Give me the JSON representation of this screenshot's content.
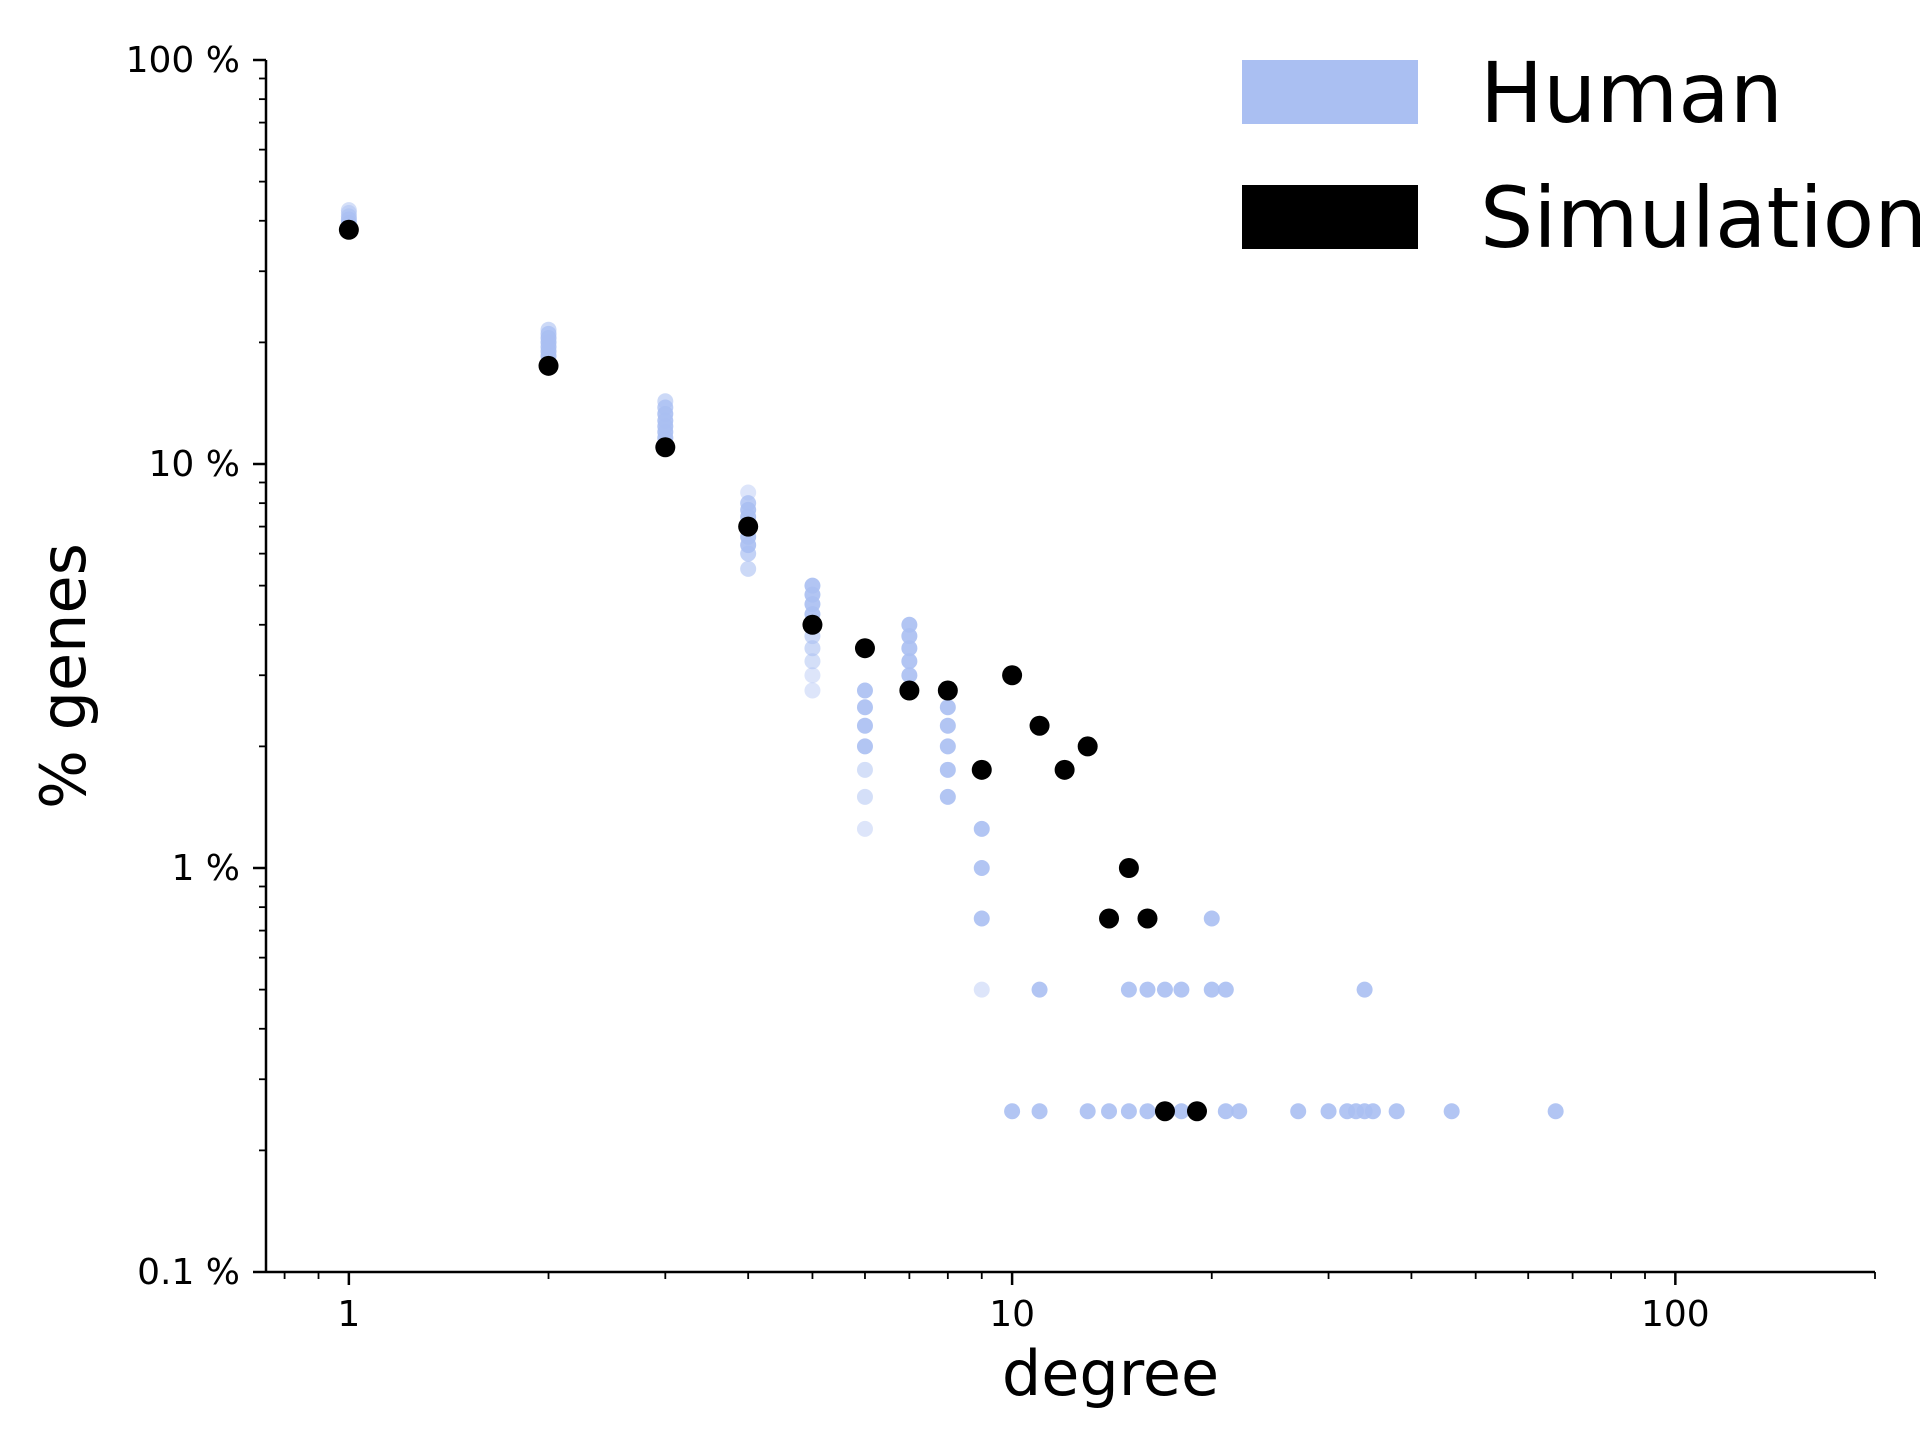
{
  "chart_data": {
    "type": "scatter",
    "title": "",
    "xlabel": "degree",
    "ylabel": "% genes",
    "xscale": "log",
    "yscale": "log",
    "xlim": [
      0.75,
      200
    ],
    "ylim": [
      0.1,
      100
    ],
    "x_ticks": [
      1,
      10,
      100
    ],
    "x_tick_labels": [
      "1",
      "10",
      "100"
    ],
    "y_ticks": [
      0.1,
      1,
      10,
      100
    ],
    "y_tick_labels": [
      "0.1 %",
      "1 %",
      "10 %",
      "100 %"
    ],
    "grid": false,
    "legend_position": "top-right",
    "series": [
      {
        "name": "Human",
        "color": "#aabff2",
        "marker": "circle",
        "points": [
          {
            "x": 1,
            "y": 42.5,
            "alpha": 0.5
          },
          {
            "x": 1,
            "y": 41.8,
            "alpha": 0.5
          },
          {
            "x": 1,
            "y": 41.0,
            "alpha": 0.6
          },
          {
            "x": 1,
            "y": 40.3,
            "alpha": 0.8
          },
          {
            "x": 1,
            "y": 39.5,
            "alpha": 0.9
          },
          {
            "x": 2,
            "y": 21.5,
            "alpha": 0.6
          },
          {
            "x": 2,
            "y": 21.0,
            "alpha": 0.8
          },
          {
            "x": 2,
            "y": 20.5,
            "alpha": 0.9
          },
          {
            "x": 2,
            "y": 20.0,
            "alpha": 0.9
          },
          {
            "x": 2,
            "y": 19.5,
            "alpha": 0.9
          },
          {
            "x": 2,
            "y": 19.0,
            "alpha": 0.9
          },
          {
            "x": 2,
            "y": 18.5,
            "alpha": 0.9
          },
          {
            "x": 3,
            "y": 14.3,
            "alpha": 0.6
          },
          {
            "x": 3,
            "y": 13.8,
            "alpha": 0.8
          },
          {
            "x": 3,
            "y": 13.3,
            "alpha": 0.9
          },
          {
            "x": 3,
            "y": 12.8,
            "alpha": 0.9
          },
          {
            "x": 3,
            "y": 12.4,
            "alpha": 0.9
          },
          {
            "x": 3,
            "y": 12.0,
            "alpha": 0.9
          },
          {
            "x": 3,
            "y": 11.6,
            "alpha": 0.9
          },
          {
            "x": 4,
            "y": 8.5,
            "alpha": 0.4
          },
          {
            "x": 4,
            "y": 8.0,
            "alpha": 0.8
          },
          {
            "x": 4,
            "y": 7.7,
            "alpha": 0.9
          },
          {
            "x": 4,
            "y": 7.4,
            "alpha": 0.9
          },
          {
            "x": 4,
            "y": 6.6,
            "alpha": 0.9
          },
          {
            "x": 4,
            "y": 6.3,
            "alpha": 0.9
          },
          {
            "x": 4,
            "y": 6.0,
            "alpha": 0.7
          },
          {
            "x": 4,
            "y": 5.5,
            "alpha": 0.6
          },
          {
            "x": 5,
            "y": 5.0,
            "alpha": 0.9
          },
          {
            "x": 5,
            "y": 4.75,
            "alpha": 0.9
          },
          {
            "x": 5,
            "y": 4.5,
            "alpha": 0.9
          },
          {
            "x": 5,
            "y": 4.25,
            "alpha": 0.9
          },
          {
            "x": 5,
            "y": 3.75,
            "alpha": 0.6
          },
          {
            "x": 5,
            "y": 3.5,
            "alpha": 0.6
          },
          {
            "x": 5,
            "y": 3.25,
            "alpha": 0.5
          },
          {
            "x": 5,
            "y": 3.0,
            "alpha": 0.4
          },
          {
            "x": 5,
            "y": 2.75,
            "alpha": 0.4
          },
          {
            "x": 6,
            "y": 2.75,
            "alpha": 0.9
          },
          {
            "x": 6,
            "y": 2.5,
            "alpha": 0.9
          },
          {
            "x": 6,
            "y": 2.25,
            "alpha": 0.9
          },
          {
            "x": 6,
            "y": 2.0,
            "alpha": 0.9
          },
          {
            "x": 6,
            "y": 1.75,
            "alpha": 0.5
          },
          {
            "x": 6,
            "y": 1.5,
            "alpha": 0.5
          },
          {
            "x": 6,
            "y": 1.25,
            "alpha": 0.4
          },
          {
            "x": 7,
            "y": 4.0,
            "alpha": 0.9
          },
          {
            "x": 7,
            "y": 3.75,
            "alpha": 0.9
          },
          {
            "x": 7,
            "y": 3.5,
            "alpha": 0.9
          },
          {
            "x": 7,
            "y": 3.25,
            "alpha": 0.9
          },
          {
            "x": 7,
            "y": 3.0,
            "alpha": 0.9
          },
          {
            "x": 8,
            "y": 2.5,
            "alpha": 0.9
          },
          {
            "x": 8,
            "y": 2.25,
            "alpha": 0.9
          },
          {
            "x": 8,
            "y": 2.0,
            "alpha": 0.9
          },
          {
            "x": 8,
            "y": 1.75,
            "alpha": 0.9
          },
          {
            "x": 8,
            "y": 1.5,
            "alpha": 0.9
          },
          {
            "x": 9,
            "y": 1.25,
            "alpha": 0.9
          },
          {
            "x": 9,
            "y": 1.0,
            "alpha": 0.9
          },
          {
            "x": 9,
            "y": 0.75,
            "alpha": 0.9
          },
          {
            "x": 9,
            "y": 0.5,
            "alpha": 0.4
          },
          {
            "x": 11,
            "y": 0.5,
            "alpha": 0.9
          },
          {
            "x": 15,
            "y": 0.5,
            "alpha": 0.9
          },
          {
            "x": 16,
            "y": 0.5,
            "alpha": 0.9
          },
          {
            "x": 17,
            "y": 0.5,
            "alpha": 0.9
          },
          {
            "x": 18,
            "y": 0.5,
            "alpha": 0.9
          },
          {
            "x": 20,
            "y": 0.5,
            "alpha": 0.9
          },
          {
            "x": 21,
            "y": 0.5,
            "alpha": 0.9
          },
          {
            "x": 34,
            "y": 0.5,
            "alpha": 0.9
          },
          {
            "x": 20,
            "y": 0.75,
            "alpha": 0.9
          },
          {
            "x": 10,
            "y": 0.25,
            "alpha": 0.9
          },
          {
            "x": 11,
            "y": 0.25,
            "alpha": 0.9
          },
          {
            "x": 13,
            "y": 0.25,
            "alpha": 0.9
          },
          {
            "x": 14,
            "y": 0.25,
            "alpha": 0.9
          },
          {
            "x": 15,
            "y": 0.25,
            "alpha": 0.9
          },
          {
            "x": 16,
            "y": 0.25,
            "alpha": 0.9
          },
          {
            "x": 18,
            "y": 0.25,
            "alpha": 0.9
          },
          {
            "x": 21,
            "y": 0.25,
            "alpha": 0.9
          },
          {
            "x": 22,
            "y": 0.25,
            "alpha": 0.9
          },
          {
            "x": 27,
            "y": 0.25,
            "alpha": 0.9
          },
          {
            "x": 30,
            "y": 0.25,
            "alpha": 0.9
          },
          {
            "x": 32,
            "y": 0.25,
            "alpha": 0.9
          },
          {
            "x": 33,
            "y": 0.25,
            "alpha": 0.9
          },
          {
            "x": 34,
            "y": 0.25,
            "alpha": 0.9
          },
          {
            "x": 35,
            "y": 0.25,
            "alpha": 0.9
          },
          {
            "x": 38,
            "y": 0.25,
            "alpha": 0.9
          },
          {
            "x": 46,
            "y": 0.25,
            "alpha": 0.9
          },
          {
            "x": 66,
            "y": 0.25,
            "alpha": 0.9
          }
        ]
      },
      {
        "name": "Simulation",
        "color": "#000000",
        "marker": "circle",
        "points": [
          {
            "x": 1,
            "y": 38.0
          },
          {
            "x": 2,
            "y": 17.5
          },
          {
            "x": 3,
            "y": 11.0
          },
          {
            "x": 4,
            "y": 7.0
          },
          {
            "x": 5,
            "y": 4.0
          },
          {
            "x": 6,
            "y": 3.5
          },
          {
            "x": 7,
            "y": 2.75
          },
          {
            "x": 8,
            "y": 2.75
          },
          {
            "x": 9,
            "y": 1.75
          },
          {
            "x": 10,
            "y": 3.0
          },
          {
            "x": 11,
            "y": 2.25
          },
          {
            "x": 12,
            "y": 1.75
          },
          {
            "x": 13,
            "y": 2.0
          },
          {
            "x": 14,
            "y": 0.75
          },
          {
            "x": 15,
            "y": 1.0
          },
          {
            "x": 16,
            "y": 0.75
          },
          {
            "x": 17,
            "y": 0.25
          },
          {
            "x": 19,
            "y": 0.25
          }
        ]
      }
    ]
  }
}
